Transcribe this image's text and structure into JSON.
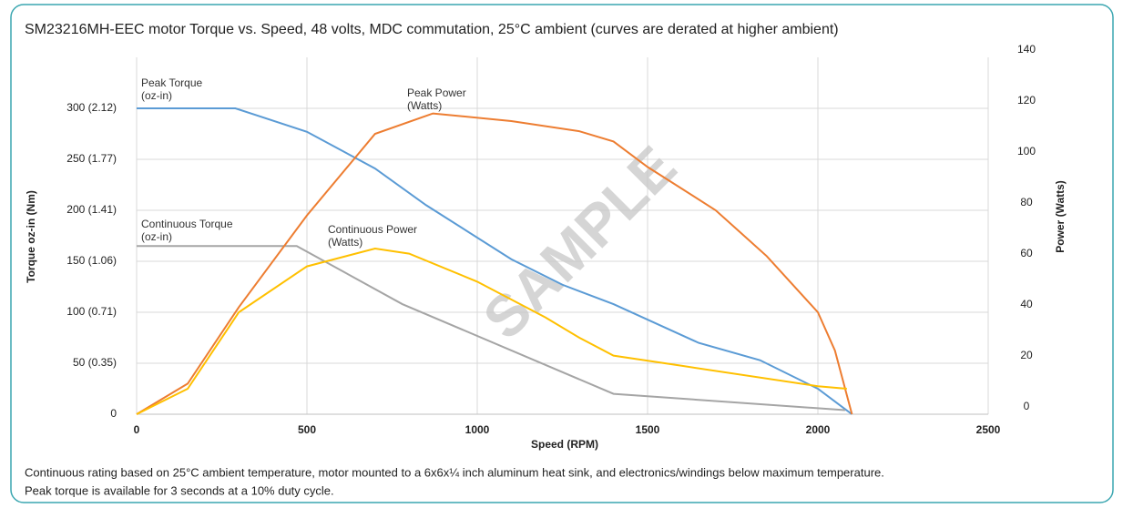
{
  "chart_data": {
    "type": "line",
    "title": "SM23216MH-EEC motor Torque vs. Speed, 48 volts, MDC commutation, 25°C ambient (curves are derated at higher ambient)",
    "x_label": "Speed (RPM)",
    "y_label": "Torque oz-in (Nm)",
    "y2_label": "Power (Watts)",
    "watermark": "SAMPLE",
    "footnote": [
      "Continuous rating based on 25°C ambient temperature, motor mounted to a 6x6x¼ inch aluminum heat sink, and electronics/windings below maximum temperature.",
      "Peak torque is available for 3 seconds at a 10% duty cycle."
    ],
    "xlim": [
      0,
      2500
    ],
    "xticks": [
      0,
      500,
      1000,
      1500,
      2000,
      2500
    ],
    "ylim": [
      0,
      350
    ],
    "yticks": [
      0,
      {
        "value": 50,
        "label": "50 (0.35)"
      },
      {
        "value": 100,
        "label": "100 (0.71)"
      },
      {
        "value": 150,
        "label": "150 (1.06)"
      },
      {
        "value": 200,
        "label": "200 (1.41)"
      },
      {
        "value": 250,
        "label": "250 (1.77)"
      },
      {
        "value": 300,
        "label": "300 (2.12)"
      }
    ],
    "y2lim": [
      0,
      140
    ],
    "y2ticks": [
      0,
      20,
      40,
      60,
      80,
      100,
      120,
      140
    ],
    "grid": true,
    "series": [
      {
        "name": "Peak Torque",
        "unit": "(oz-in)",
        "color": "#5b9bd5",
        "axis": "y",
        "x": [
          0,
          290,
          500,
          700,
          850,
          1100,
          1250,
          1400,
          1650,
          1830,
          2000,
          2080,
          2100
        ],
        "values": [
          300,
          300,
          277,
          241,
          205,
          152,
          127,
          108,
          70,
          53,
          25,
          5,
          0
        ]
      },
      {
        "name": "Continuous Torque",
        "unit": "(oz-in)",
        "color": "#a5a5a5",
        "axis": "y",
        "x": [
          0,
          470,
          780,
          1400,
          2080
        ],
        "values": [
          165,
          165,
          108,
          20,
          4
        ]
      },
      {
        "name": "Peak Power",
        "unit": "(Watts)",
        "color": "#ed7d31",
        "axis": "y2",
        "x": [
          0,
          150,
          300,
          500,
          700,
          870,
          1100,
          1300,
          1400,
          1500,
          1700,
          1850,
          2000,
          2050,
          2100
        ],
        "values": [
          0,
          12,
          42,
          78,
          110,
          118,
          115,
          111,
          107,
          97,
          80,
          62,
          40,
          25,
          0
        ]
      },
      {
        "name": "Continuous Power",
        "unit": "(Watts)",
        "color": "#ffc000",
        "axis": "y2",
        "x": [
          0,
          150,
          300,
          500,
          700,
          800,
          1000,
          1200,
          1300,
          1400,
          1600,
          2000,
          2085
        ],
        "values": [
          0,
          10,
          40,
          58,
          65,
          63,
          52,
          38,
          30,
          23,
          19,
          11,
          10
        ]
      }
    ]
  }
}
